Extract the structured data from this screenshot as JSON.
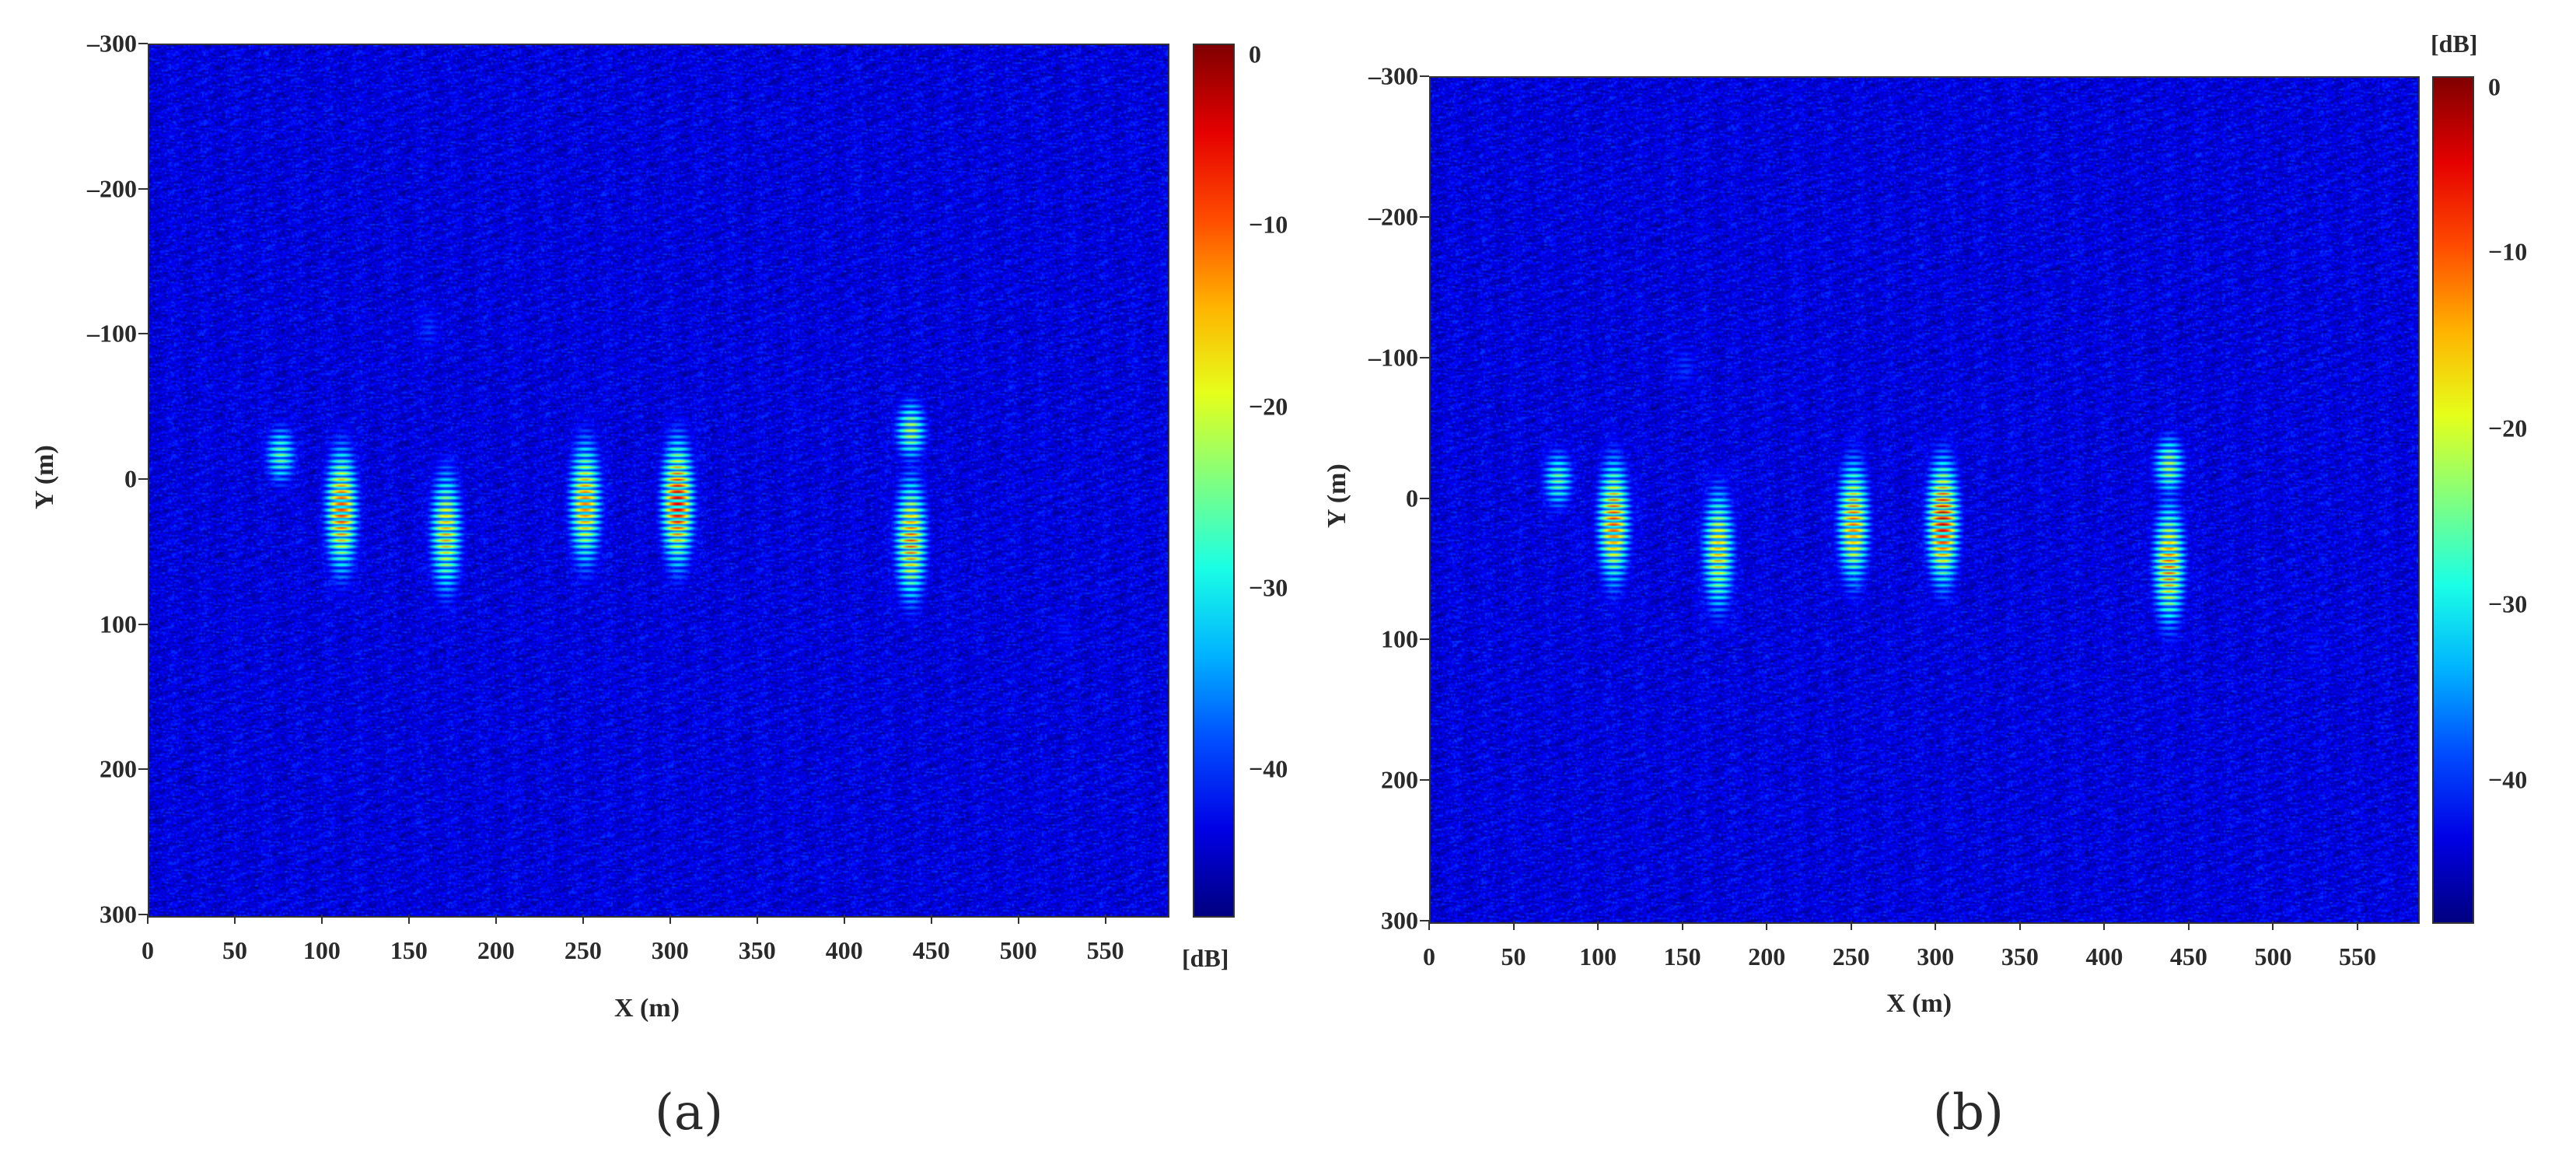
{
  "chart_data": [
    {
      "type": "heatmap",
      "panel": "a",
      "caption": "(a)",
      "xlabel": "X (m)",
      "ylabel": "Y (m)",
      "xlim": [
        0,
        585
      ],
      "ylim": [
        -300,
        300
      ],
      "y_inverted": true,
      "xticks": [
        "0",
        "50",
        "100",
        "150",
        "200",
        "250",
        "300",
        "350",
        "400",
        "450",
        "500",
        "550"
      ],
      "yticks": [
        "–300",
        "–200",
        "–100",
        "0",
        "100",
        "200",
        "300"
      ],
      "colorbar": {
        "unit": "[dB]",
        "unit_position": "bottom",
        "range": [
          -48,
          0
        ],
        "ticks": [
          "0",
          "−10",
          "−20",
          "−30",
          "−40"
        ],
        "colormap": "jet"
      },
      "background_level_db": -45,
      "targets": [
        {
          "x": 75,
          "y": -18,
          "peak_db": -22
        },
        {
          "x": 110,
          "y": 20,
          "peak_db": -5
        },
        {
          "x": 170,
          "y": 35,
          "peak_db": -12
        },
        {
          "x": 250,
          "y": 15,
          "peak_db": -8
        },
        {
          "x": 303,
          "y": 15,
          "peak_db": 0
        },
        {
          "x": 437,
          "y": -35,
          "peak_db": -18
        },
        {
          "x": 437,
          "y": 40,
          "peak_db": -8
        },
        {
          "x": 160,
          "y": -105,
          "peak_db": -38
        },
        {
          "x": 525,
          "y": 103,
          "peak_db": -40
        }
      ]
    },
    {
      "type": "heatmap",
      "panel": "b",
      "caption": "(b)",
      "xlabel": "X (m)",
      "ylabel": "Y (m)",
      "xlim": [
        0,
        585
      ],
      "ylim": [
        -300,
        300
      ],
      "y_inverted": true,
      "xticks": [
        "0",
        "50",
        "100",
        "150",
        "200",
        "250",
        "300",
        "350",
        "400",
        "450",
        "500",
        "550"
      ],
      "yticks": [
        "–300",
        "–200",
        "–100",
        "0",
        "100",
        "200",
        "300"
      ],
      "colorbar": {
        "unit": "[dB]",
        "unit_position": "top",
        "range": [
          -48,
          0
        ],
        "ticks": [
          "0",
          "−10",
          "−20",
          "−30",
          "−40"
        ],
        "colormap": "jet"
      },
      "background_level_db": -45,
      "targets": [
        {
          "x": 75,
          "y": -15,
          "peak_db": -22
        },
        {
          "x": 108,
          "y": 15,
          "peak_db": -6
        },
        {
          "x": 170,
          "y": 35,
          "peak_db": -12
        },
        {
          "x": 250,
          "y": 15,
          "peak_db": -8
        },
        {
          "x": 303,
          "y": 15,
          "peak_db": 0
        },
        {
          "x": 437,
          "y": -25,
          "peak_db": -18
        },
        {
          "x": 437,
          "y": 45,
          "peak_db": -8
        },
        {
          "x": 150,
          "y": -95,
          "peak_db": -38
        },
        {
          "x": 523,
          "y": 105,
          "peak_db": -40
        }
      ]
    }
  ]
}
